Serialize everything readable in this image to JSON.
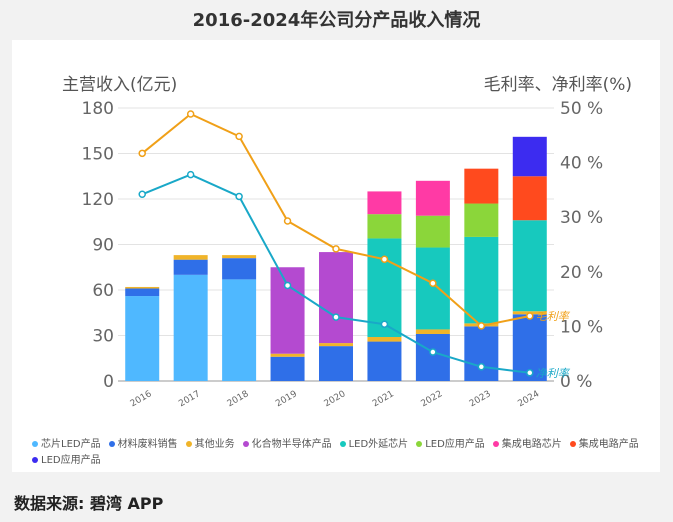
{
  "page": {
    "title": "2016-2024年公司分产品收入情况",
    "source": "数据来源: 碧湾 APP"
  },
  "colors": {
    "芯片LED产品": "#4fb8ff",
    "材料废料销售": "#2f6fe8",
    "其他业务": "#f0b429",
    "化合物半导体产品": "#b44ad0",
    "LED外延芯片": "#17c9be",
    "LED应用产品": "#8bd63a",
    "集成电路芯片": "#ff3aa5",
    "集成电路产品": "#ff4a1e",
    "LED应用产品2": "#3c2cf0",
    "gross_margin_line": "#f0a018",
    "net_margin_line": "#19a8c8"
  },
  "chart_data": {
    "type": "bar",
    "categories": [
      "2016",
      "2017",
      "2018",
      "2019",
      "2020",
      "2021",
      "2022",
      "2023",
      "2024"
    ],
    "left_axis": {
      "label": "主营收入(亿元)",
      "ylim": [
        0,
        180
      ],
      "ticks": [
        0,
        30,
        60,
        90,
        120,
        150,
        180
      ]
    },
    "right_axis": {
      "label": "毛利率、净利率(%)",
      "ylim": [
        0,
        50
      ],
      "ticks": [
        "0 %",
        "10 %",
        "20 %",
        "30 %",
        "40 %",
        "50 %"
      ]
    },
    "grid": true,
    "series": [
      {
        "name": "芯片LED产品",
        "values": [
          56,
          70,
          67,
          0,
          0,
          0,
          0,
          0,
          0
        ]
      },
      {
        "name": "材料废料销售",
        "values": [
          5,
          10,
          14,
          16,
          23,
          26,
          31,
          36,
          44
        ]
      },
      {
        "name": "其他业务",
        "values": [
          1,
          3,
          2,
          2,
          2,
          3,
          3,
          2,
          2
        ]
      },
      {
        "name": "化合物半导体产品",
        "values": [
          0,
          0,
          0,
          57,
          60,
          0,
          0,
          0,
          0
        ]
      },
      {
        "name": "LED外延芯片",
        "values": [
          0,
          0,
          0,
          0,
          0,
          65,
          54,
          57,
          60
        ]
      },
      {
        "name": "LED应用产品",
        "values": [
          0,
          0,
          0,
          0,
          0,
          16,
          21,
          22,
          0
        ]
      },
      {
        "name": "集成电路芯片",
        "values": [
          0,
          0,
          0,
          0,
          0,
          15,
          23,
          0,
          0
        ]
      },
      {
        "name": "集成电路产品",
        "values": [
          0,
          0,
          0,
          0,
          0,
          0,
          0,
          23,
          29
        ]
      },
      {
        "name": "LED应用产品",
        "values": [
          0,
          0,
          0,
          0,
          0,
          0,
          0,
          0,
          26
        ]
      }
    ],
    "lines": [
      {
        "name": "毛利率",
        "axis": "right",
        "values": [
          41.7,
          48.9,
          44.8,
          29.3,
          24.2,
          22.3,
          17.9,
          10.1,
          11.9
        ]
      },
      {
        "name": "净利率",
        "axis": "right",
        "values": [
          34.2,
          37.8,
          33.8,
          17.5,
          11.7,
          10.4,
          5.3,
          2.6,
          1.5
        ]
      }
    ]
  },
  "legend": [
    "芯片LED产品",
    "材料废料销售",
    "其他业务",
    "化合物半导体产品",
    "LED外延芯片",
    "LED应用产品",
    "集成电路芯片",
    "集成电路产品",
    "LED应用产品"
  ]
}
